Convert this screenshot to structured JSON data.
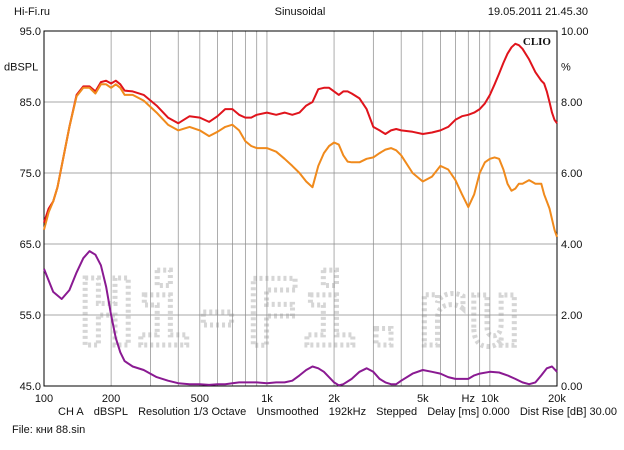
{
  "header": {
    "left": "Hi-Fi.ru",
    "center": "Sinusoidal",
    "right": "19.05.2011 21.45.30"
  },
  "status": {
    "channel": "CH A",
    "unit": "dBSPL",
    "resolution": "Resolution 1/3 Octave",
    "smoothing": "Unsmoothed",
    "rate": "192kHz",
    "mode": "Stepped",
    "delay": "Delay [ms] 0.000",
    "dist_rise": "Dist Rise [dB] 30.00"
  },
  "file": "File: кни 88.sin",
  "colors": {
    "red": "#e0141c",
    "orange": "#f08a1c",
    "purple": "#8a1a92",
    "grid": "#8a8a8a",
    "watermark": "#d6d6d6"
  },
  "chart_data": {
    "type": "line",
    "brand": "CLIO",
    "watermark": "Hi-Fi.ru",
    "xscale": "log",
    "xlim": [
      100,
      20000
    ],
    "ylim": [
      45,
      95
    ],
    "y2lim": [
      0,
      10
    ],
    "ylabel": "dBSPL",
    "y2label": "%",
    "x_ticks": [
      {
        "v": 100,
        "label": "100"
      },
      {
        "v": 200,
        "label": "200"
      },
      {
        "v": 500,
        "label": "500"
      },
      {
        "v": 1000,
        "label": "1k"
      },
      {
        "v": 2000,
        "label": "2k"
      },
      {
        "v": 5000,
        "label": "5k"
      },
      {
        "v": 8000,
        "label": "Hz"
      },
      {
        "v": 10000,
        "label": "10k"
      },
      {
        "v": 20000,
        "label": "20k"
      }
    ],
    "y_ticks": [
      {
        "v": 95,
        "label": "95.0"
      },
      {
        "v": 85,
        "label": "85.0"
      },
      {
        "v": 75,
        "label": "75.0"
      },
      {
        "v": 65,
        "label": "65.0"
      },
      {
        "v": 55,
        "label": "55.0"
      },
      {
        "v": 45,
        "label": "45.0"
      }
    ],
    "y2_ticks": [
      {
        "v": 10,
        "label": "10.00"
      },
      {
        "v": 8,
        "label": "8.00"
      },
      {
        "v": 6,
        "label": "6.00"
      },
      {
        "v": 4,
        "label": "4.00"
      },
      {
        "v": 2,
        "label": "2.00"
      },
      {
        "v": 0,
        "label": "0.00"
      }
    ],
    "series": [
      {
        "key": "red",
        "axis": "left",
        "points": [
          [
            100,
            68.0
          ],
          [
            105,
            70.0
          ],
          [
            110,
            71.0
          ],
          [
            115,
            73.0
          ],
          [
            120,
            76.0
          ],
          [
            130,
            81.5
          ],
          [
            140,
            86.0
          ],
          [
            150,
            87.2
          ],
          [
            160,
            87.2
          ],
          [
            170,
            86.5
          ],
          [
            180,
            87.8
          ],
          [
            190,
            88.0
          ],
          [
            200,
            87.6
          ],
          [
            210,
            88.0
          ],
          [
            220,
            87.5
          ],
          [
            230,
            86.6
          ],
          [
            250,
            86.5
          ],
          [
            280,
            86.0
          ],
          [
            320,
            84.5
          ],
          [
            360,
            82.8
          ],
          [
            400,
            82.0
          ],
          [
            450,
            83.0
          ],
          [
            500,
            82.8
          ],
          [
            550,
            82.2
          ],
          [
            600,
            83.0
          ],
          [
            650,
            84.0
          ],
          [
            700,
            84.0
          ],
          [
            750,
            83.2
          ],
          [
            800,
            82.8
          ],
          [
            850,
            82.8
          ],
          [
            900,
            83.2
          ],
          [
            1000,
            83.5
          ],
          [
            1100,
            83.2
          ],
          [
            1200,
            83.5
          ],
          [
            1300,
            83.2
          ],
          [
            1400,
            83.5
          ],
          [
            1500,
            84.5
          ],
          [
            1600,
            85.0
          ],
          [
            1700,
            86.8
          ],
          [
            1800,
            87.0
          ],
          [
            1900,
            87.0
          ],
          [
            2000,
            86.5
          ],
          [
            2100,
            86.0
          ],
          [
            2200,
            86.5
          ],
          [
            2300,
            86.5
          ],
          [
            2400,
            86.2
          ],
          [
            2600,
            85.5
          ],
          [
            2800,
            84.0
          ],
          [
            3000,
            81.5
          ],
          [
            3200,
            81.0
          ],
          [
            3400,
            80.5
          ],
          [
            3600,
            81.0
          ],
          [
            3800,
            81.2
          ],
          [
            4000,
            81.0
          ],
          [
            4500,
            80.8
          ],
          [
            5000,
            80.5
          ],
          [
            5500,
            80.7
          ],
          [
            6000,
            81.0
          ],
          [
            6500,
            81.5
          ],
          [
            7000,
            82.5
          ],
          [
            7500,
            83.0
          ],
          [
            8000,
            83.2
          ],
          [
            8500,
            83.5
          ],
          [
            9000,
            84.0
          ],
          [
            9500,
            84.8
          ],
          [
            10000,
            86.0
          ],
          [
            10500,
            87.5
          ],
          [
            11000,
            89.0
          ],
          [
            11500,
            90.5
          ],
          [
            12000,
            91.8
          ],
          [
            12500,
            92.7
          ],
          [
            13000,
            93.2
          ],
          [
            13500,
            93.0
          ],
          [
            14000,
            92.5
          ],
          [
            15000,
            91.0
          ],
          [
            16000,
            89.2
          ],
          [
            17000,
            88.0
          ],
          [
            17500,
            87.6
          ],
          [
            18000,
            86.5
          ],
          [
            18500,
            85.0
          ],
          [
            19000,
            83.5
          ],
          [
            19500,
            82.5
          ],
          [
            20000,
            82.0
          ]
        ]
      },
      {
        "key": "orange",
        "axis": "left",
        "points": [
          [
            100,
            67.0
          ],
          [
            105,
            69.5
          ],
          [
            110,
            71.0
          ],
          [
            115,
            73.0
          ],
          [
            120,
            76.0
          ],
          [
            130,
            81.5
          ],
          [
            140,
            85.8
          ],
          [
            150,
            87.0
          ],
          [
            160,
            87.0
          ],
          [
            170,
            86.2
          ],
          [
            180,
            87.5
          ],
          [
            190,
            87.5
          ],
          [
            200,
            87.0
          ],
          [
            210,
            87.5
          ],
          [
            220,
            87.0
          ],
          [
            230,
            86.0
          ],
          [
            250,
            86.0
          ],
          [
            280,
            85.2
          ],
          [
            320,
            83.5
          ],
          [
            360,
            81.8
          ],
          [
            400,
            81.0
          ],
          [
            450,
            81.5
          ],
          [
            500,
            81.0
          ],
          [
            550,
            80.2
          ],
          [
            600,
            80.8
          ],
          [
            650,
            81.5
          ],
          [
            700,
            81.8
          ],
          [
            750,
            81.0
          ],
          [
            800,
            79.5
          ],
          [
            850,
            78.8
          ],
          [
            900,
            78.5
          ],
          [
            1000,
            78.5
          ],
          [
            1100,
            78.0
          ],
          [
            1200,
            77.0
          ],
          [
            1300,
            76.0
          ],
          [
            1400,
            75.0
          ],
          [
            1500,
            73.8
          ],
          [
            1600,
            73.0
          ],
          [
            1700,
            76.0
          ],
          [
            1800,
            77.8
          ],
          [
            1900,
            78.8
          ],
          [
            2000,
            79.3
          ],
          [
            2100,
            79.0
          ],
          [
            2200,
            77.5
          ],
          [
            2300,
            76.6
          ],
          [
            2400,
            76.5
          ],
          [
            2600,
            76.5
          ],
          [
            2800,
            77.0
          ],
          [
            3000,
            77.2
          ],
          [
            3200,
            77.8
          ],
          [
            3400,
            78.3
          ],
          [
            3600,
            78.5
          ],
          [
            3800,
            78.2
          ],
          [
            4000,
            77.5
          ],
          [
            4500,
            75.0
          ],
          [
            5000,
            73.8
          ],
          [
            5500,
            74.5
          ],
          [
            6000,
            76.0
          ],
          [
            6500,
            75.5
          ],
          [
            7000,
            74.0
          ],
          [
            7500,
            72.0
          ],
          [
            8000,
            70.2
          ],
          [
            8500,
            72.0
          ],
          [
            9000,
            75.0
          ],
          [
            9500,
            76.5
          ],
          [
            10000,
            77.0
          ],
          [
            10500,
            77.2
          ],
          [
            11000,
            77.0
          ],
          [
            11500,
            75.5
          ],
          [
            12000,
            73.5
          ],
          [
            12500,
            72.5
          ],
          [
            13000,
            72.8
          ],
          [
            13500,
            73.5
          ],
          [
            14000,
            73.5
          ],
          [
            15000,
            74.0
          ],
          [
            16000,
            73.5
          ],
          [
            17000,
            73.5
          ],
          [
            17500,
            72.0
          ],
          [
            18000,
            71.0
          ],
          [
            18500,
            70.0
          ],
          [
            19000,
            68.5
          ],
          [
            19500,
            67.0
          ],
          [
            20000,
            66.0
          ]
        ]
      },
      {
        "key": "purple",
        "axis": "right",
        "points": [
          [
            100,
            3.3
          ],
          [
            110,
            2.65
          ],
          [
            120,
            2.45
          ],
          [
            130,
            2.7
          ],
          [
            140,
            3.2
          ],
          [
            150,
            3.6
          ],
          [
            160,
            3.8
          ],
          [
            170,
            3.7
          ],
          [
            180,
            3.4
          ],
          [
            190,
            2.8
          ],
          [
            200,
            2.0
          ],
          [
            210,
            1.35
          ],
          [
            220,
            0.95
          ],
          [
            230,
            0.7
          ],
          [
            250,
            0.55
          ],
          [
            280,
            0.45
          ],
          [
            320,
            0.25
          ],
          [
            360,
            0.15
          ],
          [
            400,
            0.08
          ],
          [
            450,
            0.05
          ],
          [
            500,
            0.05
          ],
          [
            550,
            0.03
          ],
          [
            600,
            0.05
          ],
          [
            650,
            0.05
          ],
          [
            700,
            0.08
          ],
          [
            750,
            0.1
          ],
          [
            800,
            0.1
          ],
          [
            900,
            0.1
          ],
          [
            1000,
            0.08
          ],
          [
            1100,
            0.1
          ],
          [
            1200,
            0.1
          ],
          [
            1300,
            0.15
          ],
          [
            1400,
            0.3
          ],
          [
            1500,
            0.45
          ],
          [
            1600,
            0.55
          ],
          [
            1700,
            0.5
          ],
          [
            1800,
            0.4
          ],
          [
            2000,
            0.1
          ],
          [
            2100,
            0.02
          ],
          [
            2200,
            0.05
          ],
          [
            2400,
            0.2
          ],
          [
            2600,
            0.4
          ],
          [
            2800,
            0.5
          ],
          [
            3000,
            0.4
          ],
          [
            3200,
            0.2
          ],
          [
            3400,
            0.1
          ],
          [
            3600,
            0.05
          ],
          [
            3800,
            0.05
          ],
          [
            4000,
            0.15
          ],
          [
            4500,
            0.35
          ],
          [
            5000,
            0.45
          ],
          [
            5500,
            0.4
          ],
          [
            6000,
            0.35
          ],
          [
            6500,
            0.25
          ],
          [
            7000,
            0.2
          ],
          [
            7500,
            0.2
          ],
          [
            8000,
            0.2
          ],
          [
            8500,
            0.3
          ],
          [
            9000,
            0.35
          ],
          [
            10000,
            0.4
          ],
          [
            11000,
            0.38
          ],
          [
            12000,
            0.3
          ],
          [
            13000,
            0.2
          ],
          [
            14000,
            0.1
          ],
          [
            15000,
            0.05
          ],
          [
            16000,
            0.1
          ],
          [
            17000,
            0.3
          ],
          [
            18000,
            0.5
          ],
          [
            19000,
            0.55
          ],
          [
            20000,
            0.4
          ]
        ]
      }
    ]
  }
}
